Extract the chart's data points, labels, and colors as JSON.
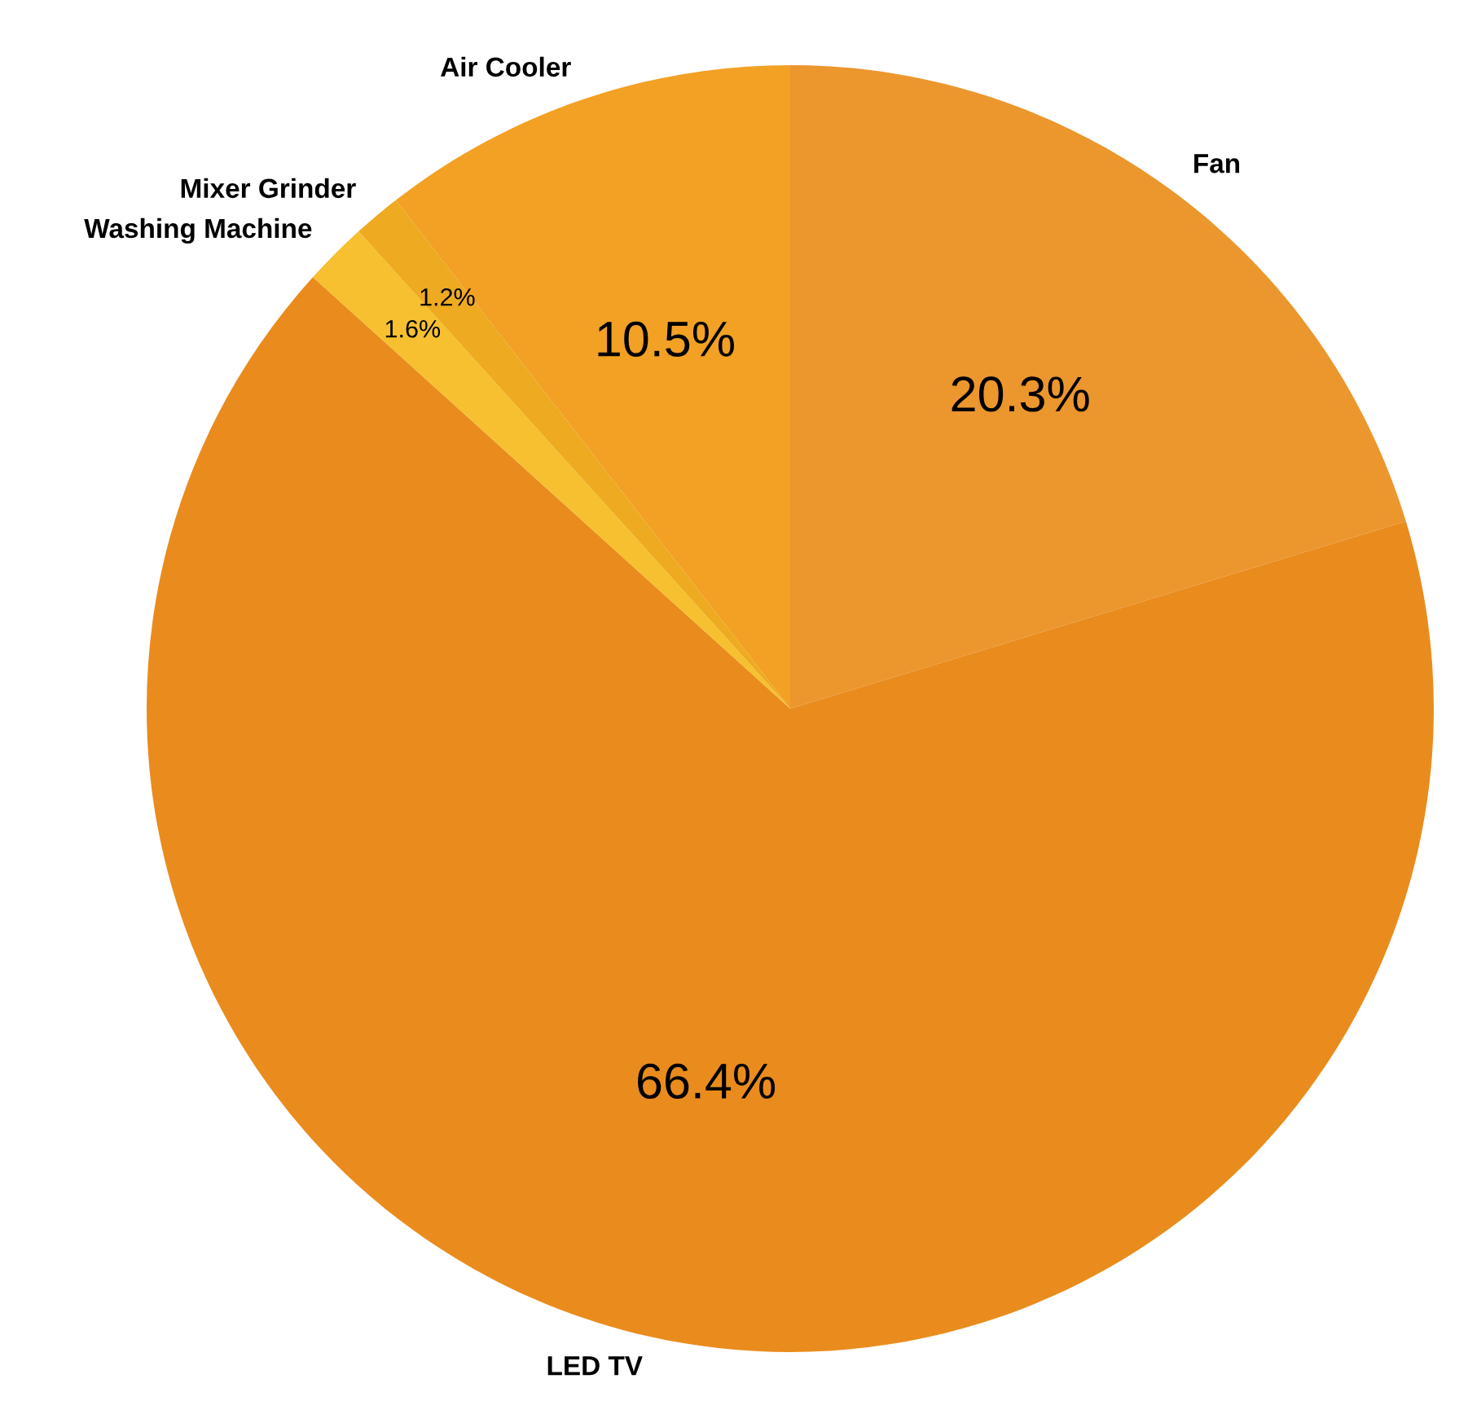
{
  "chart_data": {
    "type": "pie",
    "categories": [
      "Fan",
      "LED TV",
      "Washing Machine",
      "Mixer Grinder",
      "Air Cooler"
    ],
    "values": [
      20.3,
      66.4,
      1.6,
      1.2,
      10.5
    ],
    "value_labels": [
      "20.3%",
      "66.4%",
      "1.6%",
      "1.2%",
      "10.5%"
    ],
    "colors": [
      "#ec962e",
      "#e98c1d",
      "#f6c030",
      "#eeaa20",
      "#f2a124"
    ]
  }
}
